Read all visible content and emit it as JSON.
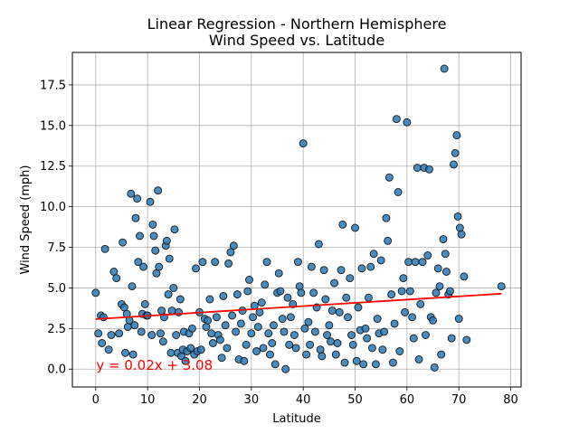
{
  "chart_data": {
    "type": "scatter",
    "title_line1": "Linear Regression - Northern Hemisphere",
    "title_line2": "Wind Speed vs. Latitude",
    "xlabel": "Latitude",
    "ylabel": "Wind Speed (mph)",
    "xlim": [
      -4.5,
      82
    ],
    "ylim": [
      -1.1,
      19.5
    ],
    "xticks": [
      0,
      10,
      20,
      30,
      40,
      50,
      60,
      70,
      80
    ],
    "yticks": [
      0.0,
      2.5,
      5.0,
      7.5,
      10.0,
      12.5,
      15.0,
      17.5
    ],
    "grid": true,
    "point_color": "#2878b5",
    "point_edge": "#1a1a1a",
    "line_color": "#ff0000",
    "regression": {
      "slope": 0.02,
      "intercept": 3.08,
      "x_range": [
        0,
        78.2
      ]
    },
    "annotation": {
      "text": "y = 0.02x + 3.08",
      "x": 0.1,
      "y": -0.05,
      "color": "#ff0000"
    },
    "points": [
      [
        0,
        4.7
      ],
      [
        0.5,
        2.2
      ],
      [
        1,
        3.3
      ],
      [
        1.2,
        1.6
      ],
      [
        1.5,
        3.2
      ],
      [
        1.8,
        7.4
      ],
      [
        2.5,
        1.2
      ],
      [
        3,
        2.1
      ],
      [
        3.5,
        6
      ],
      [
        4,
        5.6
      ],
      [
        4.5,
        2.2
      ],
      [
        5,
        4
      ],
      [
        5.2,
        7.8
      ],
      [
        5.5,
        3.8
      ],
      [
        5.7,
        1
      ],
      [
        6,
        3.4
      ],
      [
        6.2,
        2.6
      ],
      [
        6.5,
        3
      ],
      [
        6.8,
        10.8
      ],
      [
        7,
        5.1
      ],
      [
        7.2,
        0.9
      ],
      [
        7.5,
        2.7
      ],
      [
        7.7,
        9.3
      ],
      [
        8,
        10.5
      ],
      [
        8.2,
        6.6
      ],
      [
        8.5,
        8.2
      ],
      [
        8.8,
        2.3
      ],
      [
        9,
        3.4
      ],
      [
        9.2,
        6.3
      ],
      [
        9.5,
        4
      ],
      [
        9.8,
        3.3
      ],
      [
        10,
        3.3
      ],
      [
        10.5,
        10.3
      ],
      [
        10.8,
        2.1
      ],
      [
        11,
        8.9
      ],
      [
        11.2,
        8.2
      ],
      [
        11.5,
        7.3
      ],
      [
        11.7,
        5.9
      ],
      [
        12,
        11
      ],
      [
        12.2,
        6.3
      ],
      [
        12.5,
        2.2
      ],
      [
        12.7,
        3.6
      ],
      [
        13,
        1.7
      ],
      [
        13.2,
        3.2
      ],
      [
        13.5,
        7.6
      ],
      [
        13.7,
        7.9
      ],
      [
        14,
        4.6
      ],
      [
        14.2,
        6.8
      ],
      [
        14.5,
        1
      ],
      [
        14.7,
        3.6
      ],
      [
        15,
        5
      ],
      [
        15.2,
        8.6
      ],
      [
        15.5,
        2.1
      ],
      [
        15.8,
        1
      ],
      [
        16,
        3.5
      ],
      [
        16.3,
        4.3
      ],
      [
        16.5,
        0.8
      ],
      [
        16.8,
        1.2
      ],
      [
        17,
        2.3
      ],
      [
        17.3,
        0.5
      ],
      [
        17.6,
        1.1
      ],
      [
        18,
        2.2
      ],
      [
        18.3,
        1.3
      ],
      [
        18.6,
        2.5
      ],
      [
        19,
        0.9
      ],
      [
        19.3,
        6.2
      ],
      [
        19.6,
        1.1
      ],
      [
        20,
        3.5
      ],
      [
        20.3,
        1.2
      ],
      [
        20.6,
        6.6
      ],
      [
        21,
        3.1
      ],
      [
        21.3,
        2.6
      ],
      [
        21.6,
        3
      ],
      [
        22,
        4.3
      ],
      [
        22.3,
        2.2
      ],
      [
        22.6,
        1.6
      ],
      [
        23,
        6.6
      ],
      [
        23.3,
        3.2
      ],
      [
        23.6,
        2.1
      ],
      [
        24,
        1.8
      ],
      [
        24.3,
        0.7
      ],
      [
        24.6,
        4.5
      ],
      [
        25,
        2.7
      ],
      [
        25.3,
        1.3
      ],
      [
        25.6,
        6.5
      ],
      [
        26,
        7.2
      ],
      [
        26.3,
        3.3
      ],
      [
        26.6,
        7.6
      ],
      [
        27,
        2.3
      ],
      [
        27.3,
        4.6
      ],
      [
        27.6,
        0.6
      ],
      [
        28,
        2.8
      ],
      [
        28.3,
        3.6
      ],
      [
        28.6,
        0.5
      ],
      [
        29,
        1.5
      ],
      [
        29.3,
        4.8
      ],
      [
        29.6,
        5.5
      ],
      [
        30,
        2.2
      ],
      [
        30.3,
        3.2
      ],
      [
        30.6,
        3.9
      ],
      [
        31,
        1.1
      ],
      [
        31.3,
        2.6
      ],
      [
        31.6,
        3.5
      ],
      [
        32,
        4.1
      ],
      [
        32.3,
        1.3
      ],
      [
        32.6,
        5.2
      ],
      [
        33,
        6.6
      ],
      [
        33.3,
        2.2
      ],
      [
        33.6,
        0.9
      ],
      [
        34,
        1.6
      ],
      [
        34.3,
        2.7
      ],
      [
        34.6,
        0.3
      ],
      [
        35,
        4.7
      ],
      [
        35.3,
        5.9
      ],
      [
        35.6,
        4.8
      ],
      [
        36,
        3.1
      ],
      [
        36.3,
        2.3
      ],
      [
        36.6,
        0
      ],
      [
        37,
        4.4
      ],
      [
        37.3,
        1.5
      ],
      [
        37.6,
        3.2
      ],
      [
        38,
        4
      ],
      [
        38.3,
        2.1
      ],
      [
        38.6,
        1.3
      ],
      [
        39,
        6.6
      ],
      [
        39.3,
        5.1
      ],
      [
        39.6,
        4.7
      ],
      [
        40,
        13.9
      ],
      [
        40.3,
        2.5
      ],
      [
        40.6,
        0.9
      ],
      [
        41,
        2.9
      ],
      [
        41.3,
        1.5
      ],
      [
        41.6,
        6.3
      ],
      [
        42,
        4.7
      ],
      [
        42.3,
        2.3
      ],
      [
        42.6,
        3.8
      ],
      [
        43,
        7.7
      ],
      [
        43.3,
        1.2
      ],
      [
        43.6,
        0.8
      ],
      [
        44,
        6.1
      ],
      [
        44.3,
        4.3
      ],
      [
        44.6,
        2.1
      ],
      [
        45,
        2.7
      ],
      [
        45.3,
        1.7
      ],
      [
        45.6,
        3.6
      ],
      [
        46,
        5.3
      ],
      [
        46.3,
        0.9
      ],
      [
        46.6,
        1.6
      ],
      [
        47,
        3.5
      ],
      [
        47.3,
        6.1
      ],
      [
        47.6,
        8.9
      ],
      [
        48,
        0.4
      ],
      [
        48.3,
        4.4
      ],
      [
        48.6,
        3.2
      ],
      [
        49,
        5.6
      ],
      [
        49.3,
        2.1
      ],
      [
        49.6,
        1.5
      ],
      [
        50,
        8.7
      ],
      [
        50.3,
        0.5
      ],
      [
        50.6,
        3.8
      ],
      [
        51,
        2.4
      ],
      [
        51.3,
        6.2
      ],
      [
        51.6,
        0.3
      ],
      [
        52,
        2.5
      ],
      [
        52.3,
        1.9
      ],
      [
        52.6,
        4.4
      ],
      [
        53,
        6.3
      ],
      [
        53.3,
        1.3
      ],
      [
        53.6,
        7.1
      ],
      [
        54,
        0.3
      ],
      [
        54.3,
        3.1
      ],
      [
        54.6,
        2.2
      ],
      [
        55,
        6.7
      ],
      [
        55.3,
        1.2
      ],
      [
        55.6,
        2.3
      ],
      [
        56,
        9.3
      ],
      [
        56.3,
        7.9
      ],
      [
        56.6,
        11.8
      ],
      [
        57,
        4.6
      ],
      [
        57.3,
        0.4
      ],
      [
        57.6,
        2.8
      ],
      [
        58,
        15.4
      ],
      [
        58.3,
        10.9
      ],
      [
        58.6,
        1.1
      ],
      [
        59,
        4.8
      ],
      [
        59.3,
        5.6
      ],
      [
        59.6,
        3.5
      ],
      [
        60,
        15.2
      ],
      [
        60.3,
        6.6
      ],
      [
        60.6,
        4.8
      ],
      [
        61,
        3.2
      ],
      [
        61.3,
        1.9
      ],
      [
        61.6,
        6.6
      ],
      [
        62,
        12.4
      ],
      [
        62.3,
        0.6
      ],
      [
        62.6,
        4
      ],
      [
        63,
        6.6
      ],
      [
        63.3,
        12.4
      ],
      [
        63.6,
        2.1
      ],
      [
        64,
        7
      ],
      [
        64.3,
        12.3
      ],
      [
        64.6,
        3.2
      ],
      [
        65,
        3
      ],
      [
        65.3,
        0.1
      ],
      [
        65.6,
        4.7
      ],
      [
        66,
        6.2
      ],
      [
        66.3,
        5.1
      ],
      [
        66.6,
        0.9
      ],
      [
        67,
        8
      ],
      [
        67.2,
        18.5
      ],
      [
        67.4,
        7.1
      ],
      [
        67.6,
        6
      ],
      [
        68,
        4.6
      ],
      [
        68.3,
        4.8
      ],
      [
        68.6,
        1.9
      ],
      [
        69,
        12.6
      ],
      [
        69.3,
        13.3
      ],
      [
        69.6,
        14.4
      ],
      [
        69.8,
        9.4
      ],
      [
        70,
        3.1
      ],
      [
        70.2,
        8.7
      ],
      [
        70.5,
        8.3
      ],
      [
        71,
        5.7
      ],
      [
        71.5,
        1.8
      ],
      [
        78.2,
        5.1
      ]
    ]
  }
}
